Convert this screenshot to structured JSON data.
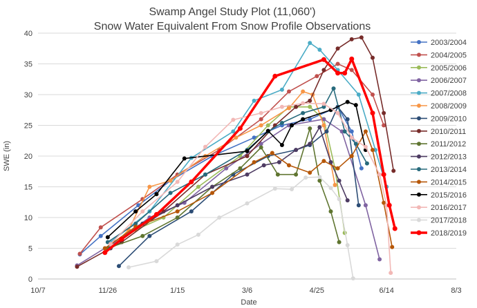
{
  "chart_data": {
    "type": "line",
    "title_line1": "Swamp Angel Study Plot (11,060')",
    "title_line2": "Snow Water Equivalent From Snow Profile Observations",
    "xlabel": "Date",
    "ylabel": "SWE (in)",
    "x_unit": "days since Oct 7",
    "xlim": [
      0,
      300
    ],
    "ylim": [
      0,
      40
    ],
    "x_ticks": [
      {
        "label": "10/7",
        "value": 0
      },
      {
        "label": "11/26",
        "value": 50
      },
      {
        "label": "1/15",
        "value": 100
      },
      {
        "label": "3/6",
        "value": 150
      },
      {
        "label": "4/25",
        "value": 200
      },
      {
        "label": "6/14",
        "value": 250
      },
      {
        "label": "8/3",
        "value": 300
      }
    ],
    "y_ticks": [
      0,
      5,
      10,
      15,
      20,
      25,
      30,
      35,
      40
    ],
    "grid": "horizontal",
    "legend_position": "right",
    "series": [
      {
        "name": "2003/2004",
        "color": "#4472c4",
        "points": [
          [
            30,
            4
          ],
          [
            45,
            7
          ],
          [
            72,
            12
          ],
          [
            95,
            16
          ],
          [
            125,
            20
          ],
          [
            155,
            23
          ],
          [
            175,
            25
          ],
          [
            195,
            26
          ],
          [
            215,
            28
          ],
          [
            225,
            24
          ],
          [
            232,
            18
          ]
        ]
      },
      {
        "name": "2004/2005",
        "color": "#c0504d",
        "points": [
          [
            30,
            4.1
          ],
          [
            45,
            8.4
          ],
          [
            75,
            13
          ],
          [
            100,
            17
          ],
          [
            130,
            21
          ],
          [
            160,
            26
          ],
          [
            180,
            30.5
          ],
          [
            200,
            33
          ],
          [
            215,
            35
          ],
          [
            225,
            34
          ],
          [
            240,
            30
          ],
          [
            248,
            25
          ]
        ]
      },
      {
        "name": "2005/2006",
        "color": "#9bbb59",
        "points": [
          [
            48,
            5
          ],
          [
            70,
            8
          ],
          [
            90,
            10
          ],
          [
            115,
            15
          ],
          [
            145,
            20
          ],
          [
            165,
            25
          ],
          [
            180,
            28
          ],
          [
            195,
            28
          ],
          [
            205,
            26
          ],
          [
            213,
            18
          ],
          [
            220,
            7.5
          ]
        ]
      },
      {
        "name": "2006/2007",
        "color": "#8064a2",
        "points": [
          [
            28,
            2.2
          ],
          [
            55,
            6
          ],
          [
            80,
            10
          ],
          [
            105,
            12.4
          ],
          [
            135,
            18
          ],
          [
            160,
            22
          ],
          [
            180,
            25
          ],
          [
            205,
            26
          ],
          [
            218,
            24
          ],
          [
            235,
            12
          ],
          [
            245,
            3.2
          ]
        ]
      },
      {
        "name": "2007/2008",
        "color": "#4bacc6",
        "points": [
          [
            52,
            6
          ],
          [
            80,
            11
          ],
          [
            110,
            19.7
          ],
          [
            140,
            24
          ],
          [
            155,
            29
          ],
          [
            175,
            30.8
          ],
          [
            195,
            38.4
          ],
          [
            202,
            37.3
          ],
          [
            215,
            34
          ],
          [
            230,
            30
          ],
          [
            242,
            21
          ],
          [
            250,
            15
          ]
        ]
      },
      {
        "name": "2008/2009",
        "color": "#f79646",
        "points": [
          [
            52,
            5
          ],
          [
            65,
            8
          ],
          [
            80,
            15
          ],
          [
            95,
            16
          ],
          [
            120,
            20
          ],
          [
            142,
            23
          ],
          [
            160,
            25
          ],
          [
            180,
            27.8
          ],
          [
            190,
            30.5
          ],
          [
            197,
            30
          ],
          [
            205,
            25
          ],
          [
            213,
            15.3
          ]
        ]
      },
      {
        "name": "2009/2010",
        "color": "#2c4d75",
        "points": [
          [
            58,
            2.1
          ],
          [
            80,
            7
          ],
          [
            110,
            11
          ],
          [
            140,
            17
          ],
          [
            165,
            20
          ],
          [
            185,
            21
          ],
          [
            195,
            21.8
          ],
          [
            207,
            24
          ],
          [
            215,
            28
          ],
          [
            222,
            26
          ],
          [
            230,
            12
          ]
        ]
      },
      {
        "name": "2010/2011",
        "color": "#772c2a",
        "points": [
          [
            28,
            2
          ],
          [
            60,
            6
          ],
          [
            90,
            11
          ],
          [
            120,
            17
          ],
          [
            150,
            20
          ],
          [
            170,
            25
          ],
          [
            185,
            28
          ],
          [
            195,
            29
          ],
          [
            205,
            34
          ],
          [
            215,
            37.5
          ],
          [
            225,
            39
          ],
          [
            232,
            39.3
          ],
          [
            240,
            36
          ],
          [
            248,
            27
          ],
          [
            255,
            17.6
          ]
        ]
      },
      {
        "name": "2011/2012",
        "color": "#5f7530",
        "points": [
          [
            50,
            5
          ],
          [
            75,
            7
          ],
          [
            100,
            10
          ],
          [
            125,
            15
          ],
          [
            145,
            18
          ],
          [
            160,
            21.4
          ],
          [
            172,
            17
          ],
          [
            185,
            17
          ],
          [
            195,
            24.5
          ],
          [
            202,
            16
          ],
          [
            210,
            11
          ],
          [
            216,
            6
          ]
        ]
      },
      {
        "name": "2012/2013",
        "color": "#4d3b62",
        "points": [
          [
            52,
            5
          ],
          [
            75,
            9
          ],
          [
            100,
            12
          ],
          [
            125,
            15
          ],
          [
            150,
            17
          ],
          [
            162,
            18.5
          ],
          [
            173,
            19
          ],
          [
            185,
            21
          ],
          [
            195,
            22
          ],
          [
            202,
            24.7
          ],
          [
            210,
            19
          ],
          [
            216,
            16
          ],
          [
            222,
            12.8
          ]
        ]
      },
      {
        "name": "2013/2014",
        "color": "#276a7c",
        "points": [
          [
            50,
            6
          ],
          [
            70,
            9
          ],
          [
            95,
            14
          ],
          [
            120,
            17
          ],
          [
            150,
            21
          ],
          [
            165,
            24
          ],
          [
            175,
            25.4
          ],
          [
            190,
            27
          ],
          [
            205,
            28
          ],
          [
            212,
            31
          ],
          [
            220,
            24
          ],
          [
            228,
            22
          ],
          [
            236,
            18.8
          ]
        ]
      },
      {
        "name": "2014/2015",
        "color": "#b65708",
        "points": [
          [
            48,
            5
          ],
          [
            70,
            8.5
          ],
          [
            100,
            11
          ],
          [
            125,
            14
          ],
          [
            155,
            19
          ],
          [
            168,
            20.5
          ],
          [
            180,
            18.5
          ],
          [
            195,
            17.3
          ],
          [
            205,
            19.2
          ],
          [
            215,
            18
          ],
          [
            225,
            20
          ],
          [
            235,
            24
          ],
          [
            240,
            21
          ],
          [
            248,
            12.4
          ],
          [
            254,
            5.2
          ]
        ]
      },
      {
        "name": "2015/2016",
        "color": "#000000",
        "points": [
          [
            50,
            6.8
          ],
          [
            70,
            11
          ],
          [
            85,
            13.8
          ],
          [
            105,
            19.6
          ],
          [
            150,
            20.8
          ],
          [
            165,
            24.1
          ],
          [
            175,
            21.8
          ],
          [
            182,
            25
          ],
          [
            190,
            26
          ],
          [
            210,
            27.5
          ],
          [
            222,
            28.8
          ],
          [
            228,
            28.3
          ],
          [
            235,
            21
          ]
        ]
      },
      {
        "name": "2016/2017",
        "color": "#f2b8b6",
        "points": [
          [
            52,
            5.7
          ],
          [
            75,
            11
          ],
          [
            100,
            15.8
          ],
          [
            120,
            21.5
          ],
          [
            140,
            25.9
          ],
          [
            160,
            27
          ],
          [
            175,
            28
          ],
          [
            190,
            28.6
          ],
          [
            205,
            28.5
          ],
          [
            215,
            27
          ],
          [
            225,
            23
          ],
          [
            235,
            21.5
          ],
          [
            245,
            17
          ],
          [
            250,
            12
          ],
          [
            253,
            1
          ]
        ]
      },
      {
        "name": "2017/2018",
        "color": "#d9d9d9",
        "points": [
          [
            65,
            1.9
          ],
          [
            85,
            2.9
          ],
          [
            100,
            5.6
          ],
          [
            115,
            7.2
          ],
          [
            130,
            10
          ],
          [
            150,
            12.3
          ],
          [
            170,
            14.7
          ],
          [
            182,
            14.6
          ],
          [
            192,
            16.5
          ],
          [
            202,
            16.6
          ],
          [
            210,
            14.8
          ],
          [
            216,
            13
          ],
          [
            222,
            5.5
          ],
          [
            226,
            0.1
          ]
        ]
      },
      {
        "name": "2018/2019",
        "color": "#ff0000",
        "bold": true,
        "points": [
          [
            48,
            4.3
          ],
          [
            60,
            6.5
          ],
          [
            85,
            10.5
          ],
          [
            110,
            15.8
          ],
          [
            145,
            24.5
          ],
          [
            170,
            33
          ],
          [
            205,
            35.7
          ],
          [
            215,
            33.5
          ],
          [
            220,
            33.5
          ],
          [
            225,
            35.8
          ],
          [
            240,
            27
          ],
          [
            248,
            17
          ],
          [
            252,
            12
          ],
          [
            256,
            8.2
          ]
        ]
      }
    ]
  }
}
